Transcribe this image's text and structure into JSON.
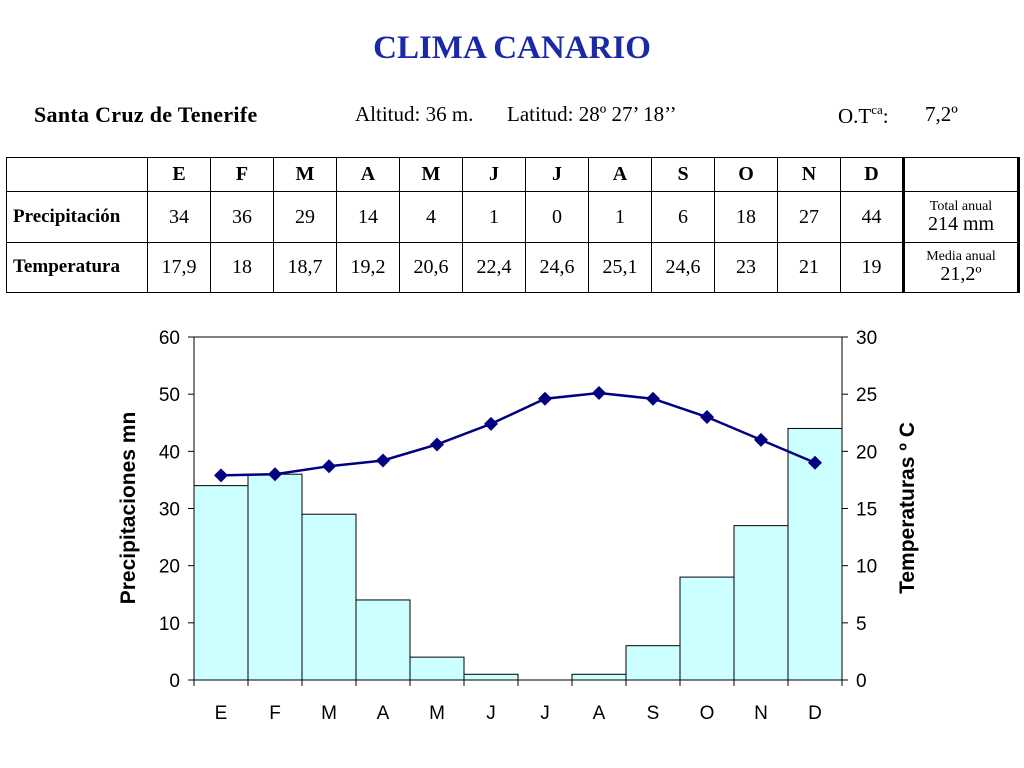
{
  "title": "CLIMA CANARIO",
  "station": {
    "name": "Santa Cruz de Tenerife",
    "altitude": "Altitud: 36 m.",
    "latitude": "Latitud: 28º 27’ 18’’",
    "otca_prefix": "O.T",
    "otca_sup": "ca",
    "otca_colon": ":",
    "otca_value": "7,2º"
  },
  "table": {
    "months": [
      "E",
      "F",
      "M",
      "A",
      "M",
      "J",
      "J",
      "A",
      "S",
      "O",
      "N",
      "D"
    ],
    "precip_label": "Precipitación",
    "temp_label": "Temperatura",
    "precip": [
      "34",
      "36",
      "29",
      "14",
      "4",
      "1",
      "0",
      "1",
      "6",
      "18",
      "27",
      "44"
    ],
    "temp": [
      "17,9",
      "18",
      "18,7",
      "19,2",
      "20,6",
      "22,4",
      "24,6",
      "25,1",
      "24,6",
      "23",
      "21",
      "19"
    ],
    "total_label": "Total anual",
    "total_value": "214 mm",
    "mean_label": "Media anual",
    "mean_value": "21,2º"
  },
  "chart_data": {
    "type": "bar+line",
    "categories": [
      "E",
      "F",
      "M",
      "A",
      "M",
      "J",
      "J",
      "A",
      "S",
      "O",
      "N",
      "D"
    ],
    "series": [
      {
        "type": "bar",
        "axis": "left",
        "values": [
          34,
          36,
          29,
          14,
          4,
          1,
          0,
          1,
          6,
          18,
          27,
          44
        ],
        "color": "#ccffff"
      },
      {
        "type": "line",
        "axis": "right",
        "values": [
          17.9,
          18,
          18.7,
          19.2,
          20.6,
          22.4,
          24.6,
          25.1,
          24.6,
          23,
          21,
          19
        ],
        "color": "#000080",
        "marker": "diamond"
      }
    ],
    "ylabel": "Precipitaciones mn",
    "y2label": "Temperaturas º C",
    "ylim": [
      0,
      60
    ],
    "y2lim": [
      0,
      30
    ],
    "yticks": [
      0,
      10,
      20,
      30,
      40,
      50,
      60
    ],
    "y2ticks": [
      0,
      5,
      10,
      15,
      20,
      25,
      30
    ],
    "grid": false
  }
}
